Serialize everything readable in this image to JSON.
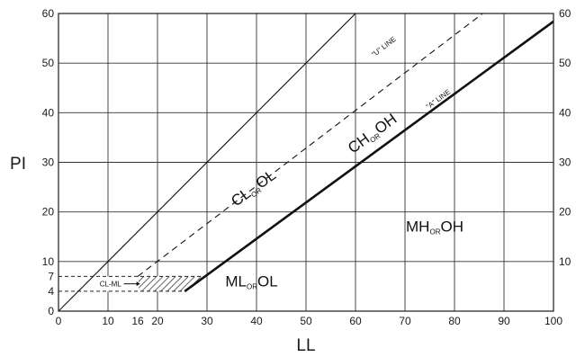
{
  "chart_data": {
    "type": "line",
    "title": "",
    "xlabel": "LL",
    "ylabel": "PI",
    "xlim": [
      0,
      100
    ],
    "ylim": [
      0,
      60
    ],
    "grid": true,
    "x_ticks": [
      0,
      10,
      16,
      20,
      30,
      40,
      50,
      60,
      70,
      80,
      90,
      100
    ],
    "y_ticks_left": [
      0,
      4,
      7,
      10,
      20,
      30,
      40,
      50,
      60
    ],
    "y_ticks_right": [
      10,
      20,
      30,
      40,
      50,
      60
    ],
    "x_gridlines": [
      10,
      20,
      30,
      40,
      50,
      60,
      70,
      80,
      90
    ],
    "y_gridlines": [
      10,
      20,
      30,
      40,
      50
    ],
    "series": [
      {
        "name": "\"A\" LINE",
        "style": "solid",
        "x": [
          25.5,
          100
        ],
        "y": [
          4,
          58.4
        ]
      },
      {
        "name": "\"U\" LINE",
        "style": "dashed",
        "x": [
          16,
          85.7
        ],
        "y": [
          7,
          60
        ]
      },
      {
        "name": "",
        "style": "solid",
        "x": [
          0,
          60
        ],
        "y": [
          0,
          60
        ]
      }
    ],
    "reference_lines": [
      {
        "style": "dashed",
        "x": [
          0,
          29.9
        ],
        "y": [
          7,
          7
        ]
      },
      {
        "style": "dashed",
        "x": [
          0,
          25.5
        ],
        "y": [
          4,
          4
        ]
      }
    ],
    "hatched_zone": {
      "label": "CL-ML",
      "x": [
        0,
        29.9,
        25.5,
        0
      ],
      "y": [
        7,
        7,
        4,
        4
      ]
    },
    "zones": [
      {
        "main1": "CL",
        "conj": "OR",
        "main2": "OL",
        "x": 40,
        "y": 24,
        "rotate": -36
      },
      {
        "main1": "CH",
        "conj": "OR",
        "main2": "OH",
        "x": 64,
        "y": 35,
        "rotate": -36
      },
      {
        "main1": "MH",
        "conj": "OR",
        "main2": "OH",
        "x": 76,
        "y": 16,
        "rotate": 0
      },
      {
        "main1": "ML",
        "conj": "OR",
        "main2": "OL",
        "x": 39,
        "y": 5,
        "rotate": 0
      }
    ]
  }
}
